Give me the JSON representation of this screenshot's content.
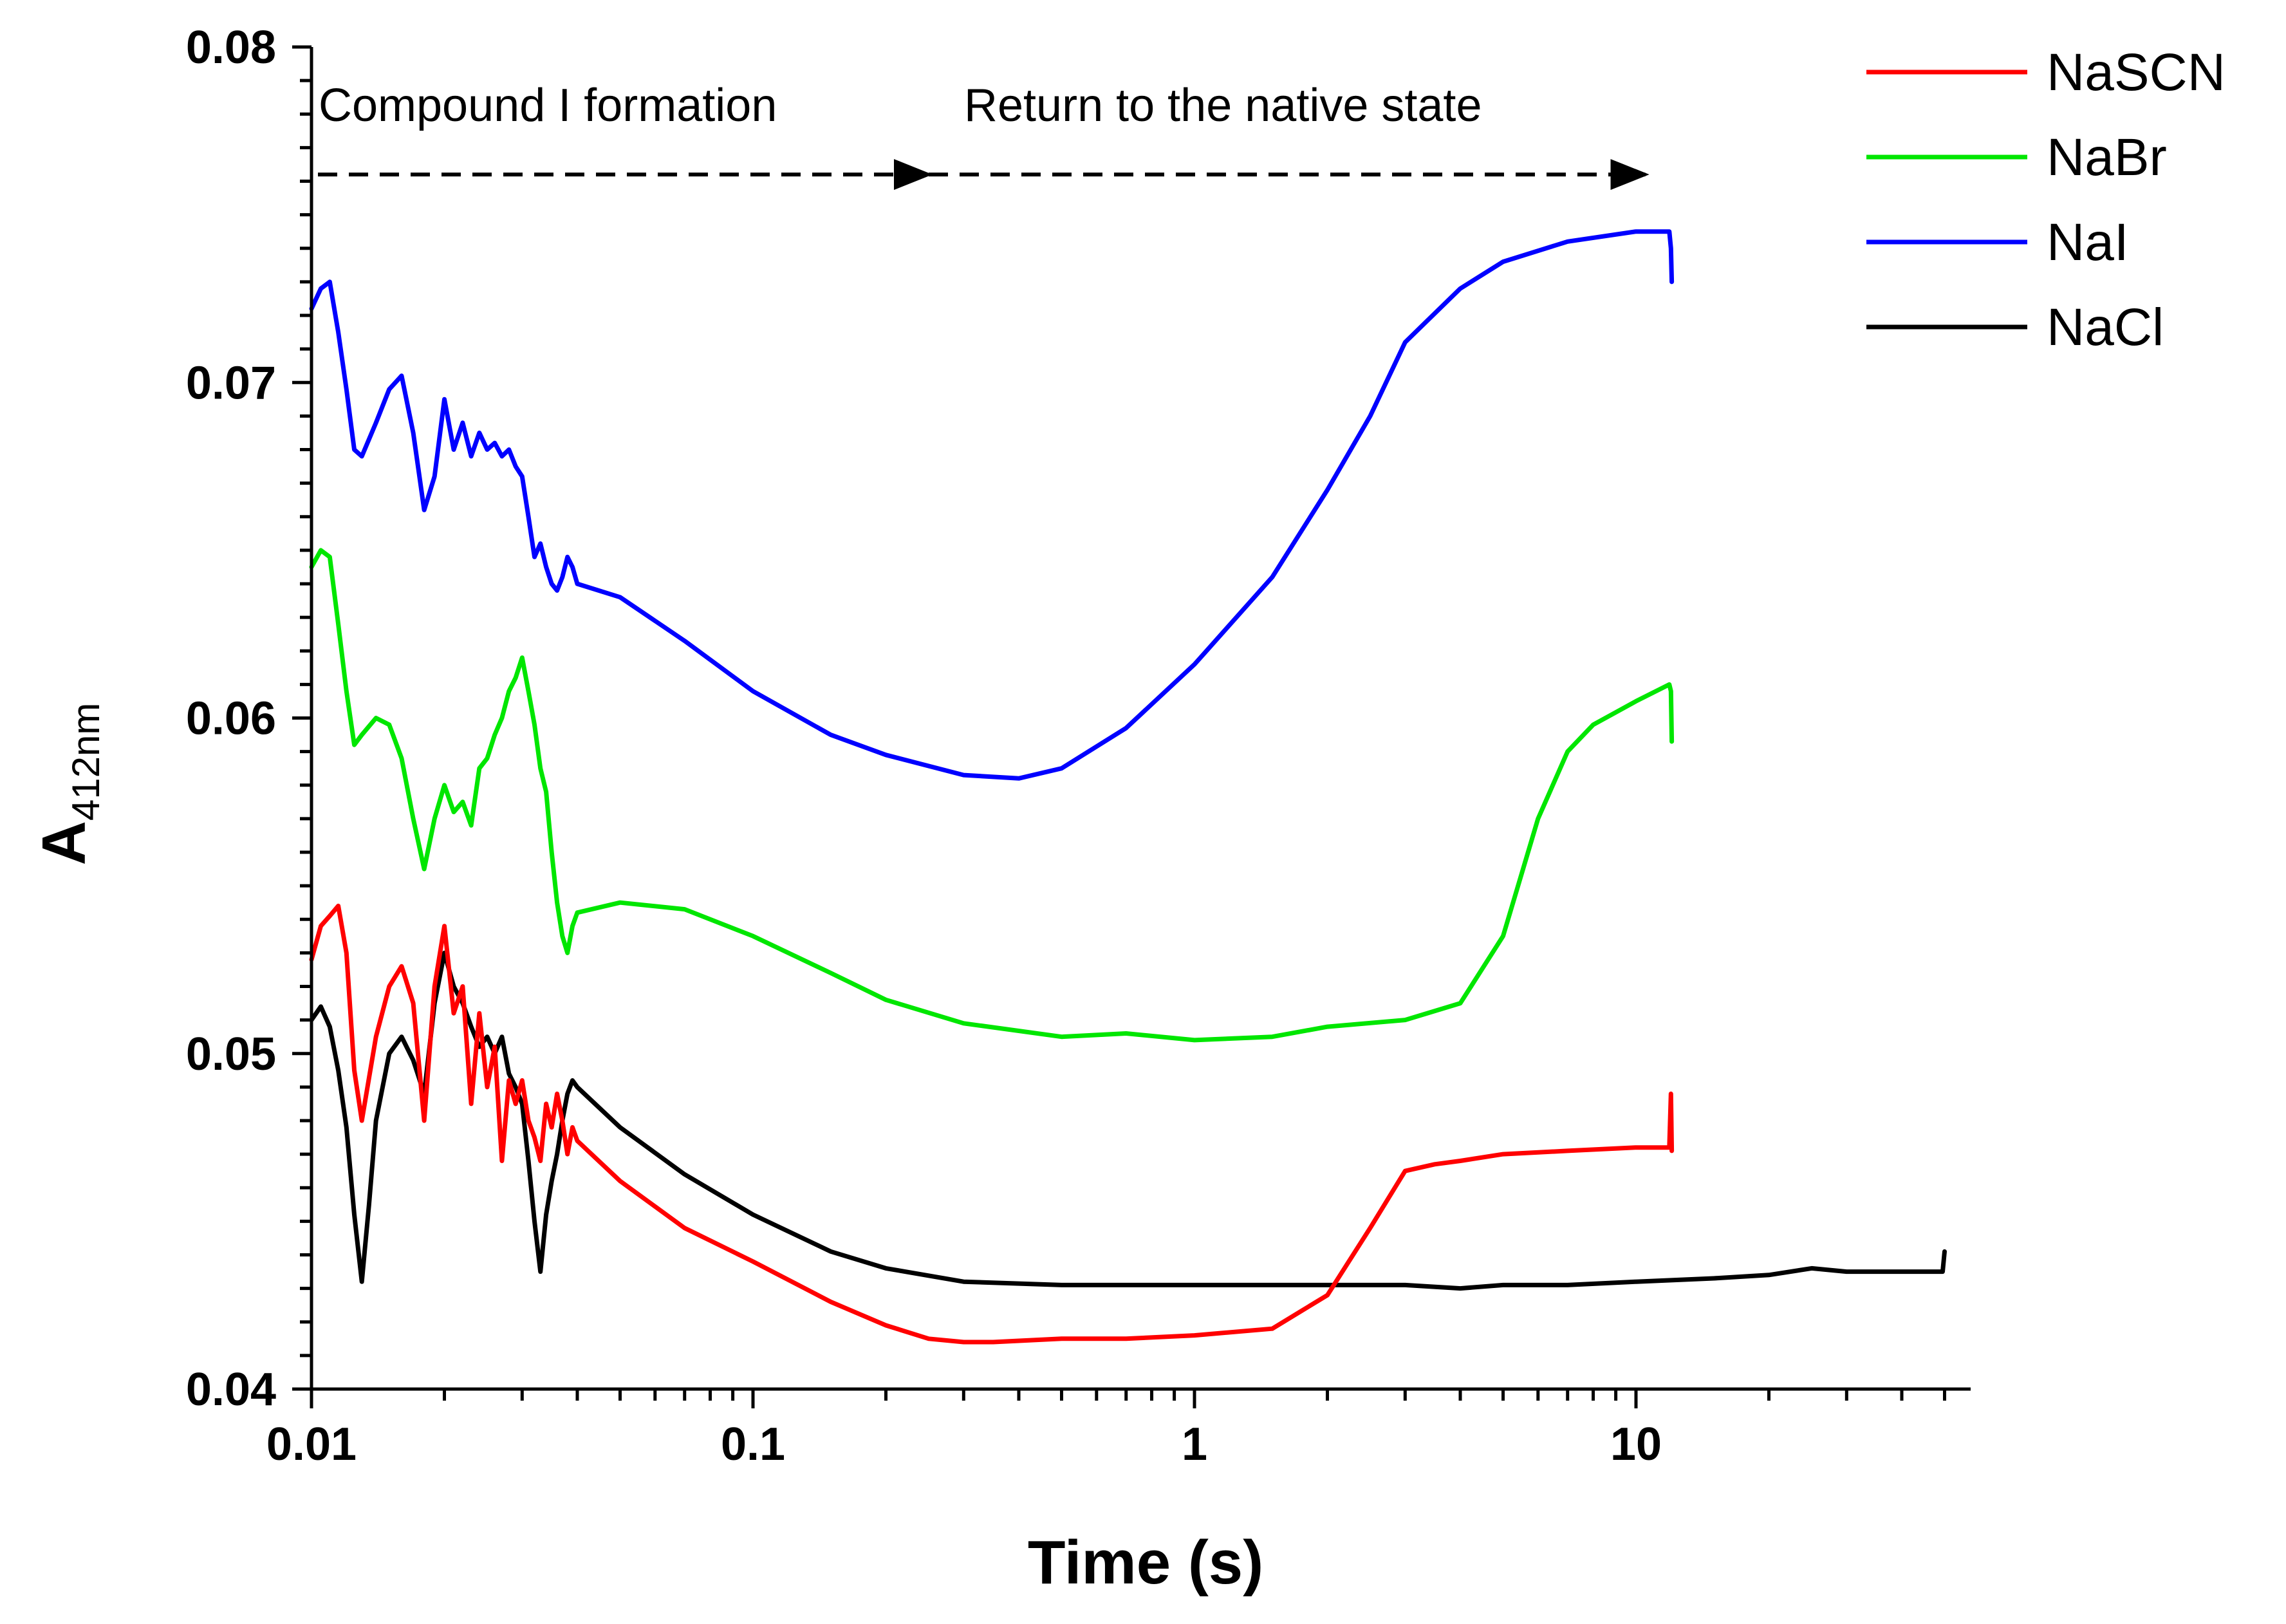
{
  "chart_data": {
    "type": "line",
    "title": "",
    "xlabel": "Time (s)",
    "ylabel_main": "A",
    "ylabel_sub": "412nm",
    "xscale": "log",
    "xlim": [
      0.01,
      70
    ],
    "ylim": [
      0.04,
      0.08
    ],
    "x_ticks": [
      0.01,
      0.1,
      1,
      10
    ],
    "x_tick_labels": [
      "0.01",
      "0.1",
      "1",
      "10"
    ],
    "y_ticks": [
      0.04,
      0.05,
      0.06,
      0.07,
      0.08
    ],
    "y_tick_labels": [
      "0.04",
      "0.05",
      "0.06",
      "0.07",
      "0.08"
    ],
    "annotations": [
      {
        "text": "Compound I formation",
        "arrow_from_x": 0.01,
        "arrow_to_x": 0.25,
        "y": 0.0762
      },
      {
        "text": "Return to the native state",
        "arrow_from_x": 0.25,
        "arrow_to_x": 10.5,
        "y": 0.0762
      }
    ],
    "legend_position": "top-right",
    "series": [
      {
        "name": "NaSCN",
        "color": "#ff0000",
        "x": [
          0.01,
          0.0105,
          0.011,
          0.0115,
          0.012,
          0.0125,
          0.013,
          0.014,
          0.015,
          0.016,
          0.017,
          0.018,
          0.019,
          0.02,
          0.021,
          0.022,
          0.023,
          0.024,
          0.025,
          0.026,
          0.027,
          0.028,
          0.029,
          0.03,
          0.031,
          0.032,
          0.033,
          0.034,
          0.035,
          0.036,
          0.037,
          0.038,
          0.039,
          0.04,
          0.05,
          0.07,
          0.1,
          0.15,
          0.2,
          0.25,
          0.3,
          0.35,
          0.5,
          0.7,
          1.0,
          1.5,
          2.0,
          2.5,
          3.0,
          3.5,
          4.0,
          5.0,
          7.0,
          10.0,
          11.9,
          12.0,
          12.05
        ],
        "y": [
          0.0528,
          0.0538,
          0.0541,
          0.0544,
          0.053,
          0.0495,
          0.048,
          0.0505,
          0.052,
          0.0526,
          0.0515,
          0.048,
          0.052,
          0.0538,
          0.0512,
          0.052,
          0.0485,
          0.0512,
          0.049,
          0.0502,
          0.0468,
          0.0492,
          0.0485,
          0.0492,
          0.048,
          0.0475,
          0.0468,
          0.0485,
          0.0478,
          0.0488,
          0.048,
          0.047,
          0.0478,
          0.0474,
          0.0462,
          0.0448,
          0.0438,
          0.0426,
          0.0419,
          0.0415,
          0.0414,
          0.0414,
          0.0415,
          0.0415,
          0.0416,
          0.0418,
          0.0428,
          0.0448,
          0.0465,
          0.0467,
          0.0468,
          0.047,
          0.0471,
          0.0472,
          0.0472,
          0.0488,
          0.0471
        ]
      },
      {
        "name": "NaBr",
        "color": "#00e600",
        "x": [
          0.01,
          0.0105,
          0.011,
          0.0115,
          0.012,
          0.0125,
          0.013,
          0.014,
          0.015,
          0.016,
          0.017,
          0.018,
          0.019,
          0.02,
          0.021,
          0.022,
          0.023,
          0.024,
          0.025,
          0.026,
          0.027,
          0.028,
          0.029,
          0.03,
          0.031,
          0.032,
          0.033,
          0.034,
          0.035,
          0.036,
          0.037,
          0.038,
          0.039,
          0.04,
          0.05,
          0.07,
          0.1,
          0.15,
          0.2,
          0.3,
          0.5,
          0.7,
          1.0,
          1.5,
          2.0,
          3.0,
          4.0,
          5.0,
          6.0,
          7.0,
          8.0,
          10.0,
          11.9,
          12.0,
          12.05
        ],
        "y": [
          0.0645,
          0.065,
          0.0648,
          0.0628,
          0.0608,
          0.0592,
          0.0595,
          0.06,
          0.0598,
          0.0588,
          0.057,
          0.0555,
          0.057,
          0.058,
          0.0572,
          0.0575,
          0.0568,
          0.0585,
          0.0588,
          0.0595,
          0.06,
          0.0608,
          0.0612,
          0.0618,
          0.0608,
          0.0598,
          0.0585,
          0.0578,
          0.056,
          0.0545,
          0.0535,
          0.053,
          0.0538,
          0.0542,
          0.0545,
          0.0543,
          0.0535,
          0.0524,
          0.0516,
          0.0509,
          0.0505,
          0.0506,
          0.0504,
          0.0505,
          0.0508,
          0.051,
          0.0515,
          0.0535,
          0.057,
          0.059,
          0.0598,
          0.0605,
          0.061,
          0.0608,
          0.0593
        ]
      },
      {
        "name": "NaI",
        "color": "#0000ff",
        "x": [
          0.01,
          0.0105,
          0.011,
          0.0115,
          0.012,
          0.0125,
          0.013,
          0.014,
          0.015,
          0.016,
          0.017,
          0.018,
          0.019,
          0.02,
          0.021,
          0.022,
          0.023,
          0.024,
          0.025,
          0.026,
          0.027,
          0.028,
          0.029,
          0.03,
          0.031,
          0.032,
          0.033,
          0.034,
          0.035,
          0.036,
          0.037,
          0.038,
          0.039,
          0.04,
          0.05,
          0.07,
          0.1,
          0.15,
          0.2,
          0.3,
          0.4,
          0.5,
          0.7,
          1.0,
          1.5,
          2.0,
          2.5,
          3.0,
          4.0,
          5.0,
          7.0,
          10.0,
          11.9,
          12.0,
          12.05
        ],
        "y": [
          0.0722,
          0.0728,
          0.073,
          0.0715,
          0.0698,
          0.068,
          0.0678,
          0.0688,
          0.0698,
          0.0702,
          0.0685,
          0.0662,
          0.0672,
          0.0695,
          0.068,
          0.0688,
          0.0678,
          0.0685,
          0.068,
          0.0682,
          0.0678,
          0.068,
          0.0675,
          0.0672,
          0.066,
          0.0648,
          0.0652,
          0.0645,
          0.064,
          0.0638,
          0.0642,
          0.0648,
          0.0645,
          0.064,
          0.0636,
          0.0623,
          0.0608,
          0.0595,
          0.0589,
          0.0583,
          0.0582,
          0.0585,
          0.0597,
          0.0616,
          0.0642,
          0.0668,
          0.069,
          0.0712,
          0.0728,
          0.0736,
          0.0742,
          0.0745,
          0.0745,
          0.074,
          0.073
        ]
      },
      {
        "name": "NaCl",
        "color": "#000000",
        "x": [
          0.01,
          0.0105,
          0.011,
          0.0115,
          0.012,
          0.0125,
          0.013,
          0.0135,
          0.014,
          0.015,
          0.016,
          0.017,
          0.018,
          0.019,
          0.02,
          0.021,
          0.022,
          0.023,
          0.024,
          0.025,
          0.026,
          0.027,
          0.028,
          0.029,
          0.03,
          0.031,
          0.032,
          0.033,
          0.034,
          0.035,
          0.036,
          0.037,
          0.038,
          0.039,
          0.04,
          0.05,
          0.07,
          0.1,
          0.15,
          0.2,
          0.3,
          0.5,
          1.0,
          2.0,
          3.0,
          4.0,
          5.0,
          7.0,
          10.0,
          15.0,
          20.0,
          25.0,
          30.0,
          40.0,
          49.5,
          50.0
        ],
        "y": [
          0.051,
          0.0514,
          0.0508,
          0.0495,
          0.0478,
          0.0452,
          0.0432,
          0.0455,
          0.048,
          0.05,
          0.0505,
          0.0498,
          0.0488,
          0.0515,
          0.053,
          0.052,
          0.0515,
          0.0508,
          0.0502,
          0.0505,
          0.05,
          0.0505,
          0.0494,
          0.049,
          0.0485,
          0.0468,
          0.045,
          0.0435,
          0.0452,
          0.0462,
          0.047,
          0.048,
          0.0488,
          0.0492,
          0.049,
          0.0478,
          0.0464,
          0.0452,
          0.0441,
          0.0436,
          0.0432,
          0.0431,
          0.0431,
          0.0431,
          0.0431,
          0.043,
          0.0431,
          0.0431,
          0.0432,
          0.0433,
          0.0434,
          0.0436,
          0.0435,
          0.0435,
          0.0435,
          0.0441
        ]
      }
    ]
  }
}
